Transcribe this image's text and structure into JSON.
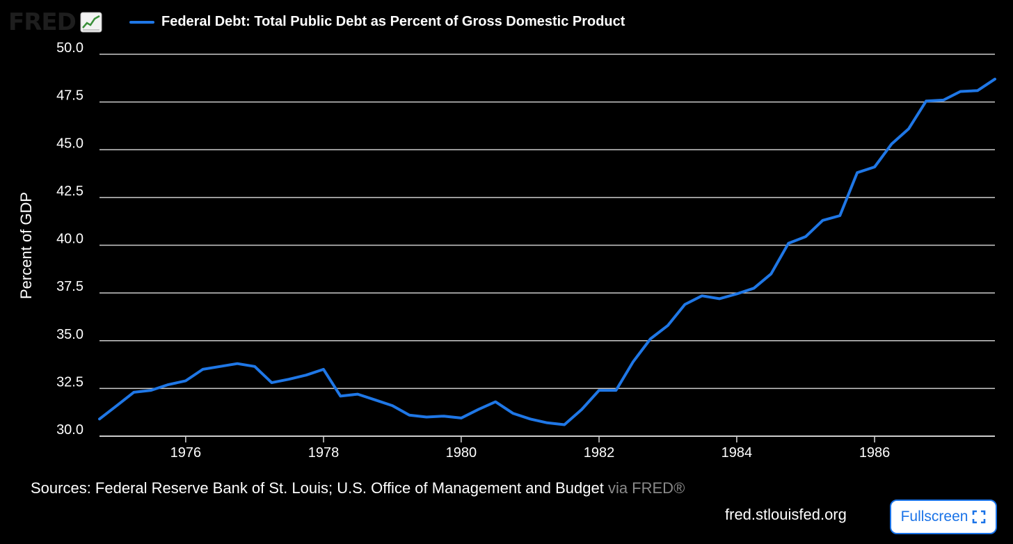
{
  "header": {
    "logo_text": "FRED",
    "logo_icon": "chart-line-icon",
    "legend_label": "Federal Debt: Total Public Debt as Percent of Gross Domestic Product"
  },
  "colors": {
    "line": "#1f77e6",
    "grid": "#cccccc",
    "background": "#000000"
  },
  "footer": {
    "source_text": "Sources: Federal Reserve Bank of St. Louis; U.S. Office of Management and Budget",
    "via_text": " via FRED®",
    "site": "fred.stlouisfed.org",
    "fullscreen_label": "Fullscreen",
    "fullscreen_icon": "expand-icon"
  },
  "chart_data": {
    "type": "line",
    "title": "",
    "xlabel": "",
    "ylabel": "Percent of GDP",
    "ylim": [
      30.0,
      50.0
    ],
    "yticks": [
      "30.0",
      "32.5",
      "35.0",
      "37.5",
      "40.0",
      "42.5",
      "45.0",
      "47.5",
      "50.0"
    ],
    "xlim": [
      "1974-10-01",
      "1987-10-01"
    ],
    "xticks": [
      "1976",
      "1978",
      "1980",
      "1982",
      "1984",
      "1986"
    ],
    "grid": true,
    "series": [
      {
        "name": "Federal Debt: Total Public Debt as Percent of Gross Domestic Product",
        "x": [
          "1974-10-01",
          "1975-01-01",
          "1975-04-01",
          "1975-07-01",
          "1975-10-01",
          "1976-01-01",
          "1976-04-01",
          "1976-07-01",
          "1976-10-01",
          "1977-01-01",
          "1977-04-01",
          "1977-07-01",
          "1977-10-01",
          "1978-01-01",
          "1978-04-01",
          "1978-07-01",
          "1978-10-01",
          "1979-01-01",
          "1979-04-01",
          "1979-07-01",
          "1979-10-01",
          "1980-01-01",
          "1980-04-01",
          "1980-07-01",
          "1980-10-01",
          "1981-01-01",
          "1981-04-01",
          "1981-07-01",
          "1981-10-01",
          "1982-01-01",
          "1982-04-01",
          "1982-07-01",
          "1982-10-01",
          "1983-01-01",
          "1983-04-01",
          "1983-07-01",
          "1983-10-01",
          "1984-01-01",
          "1984-04-01",
          "1984-07-01",
          "1984-10-01",
          "1985-01-01",
          "1985-04-01",
          "1985-07-01",
          "1985-10-01",
          "1986-01-01",
          "1986-04-01",
          "1986-07-01",
          "1986-10-01",
          "1987-01-01",
          "1987-04-01",
          "1987-07-01",
          "1987-10-01"
        ],
        "values": [
          30.9,
          31.6,
          32.3,
          32.4,
          32.7,
          32.9,
          33.5,
          33.65,
          33.8,
          33.65,
          32.8,
          32.98,
          33.2,
          33.5,
          32.1,
          32.2,
          31.9,
          31.6,
          31.1,
          31.0,
          31.05,
          30.95,
          31.4,
          31.8,
          31.2,
          30.9,
          30.7,
          30.6,
          31.4,
          32.4,
          32.4,
          33.9,
          35.1,
          35.8,
          36.9,
          37.35,
          37.2,
          37.45,
          37.75,
          38.5,
          40.1,
          40.45,
          41.3,
          41.55,
          43.8,
          44.1,
          45.3,
          46.1,
          47.55,
          47.6,
          48.05,
          48.1,
          48.7
        ]
      }
    ]
  }
}
